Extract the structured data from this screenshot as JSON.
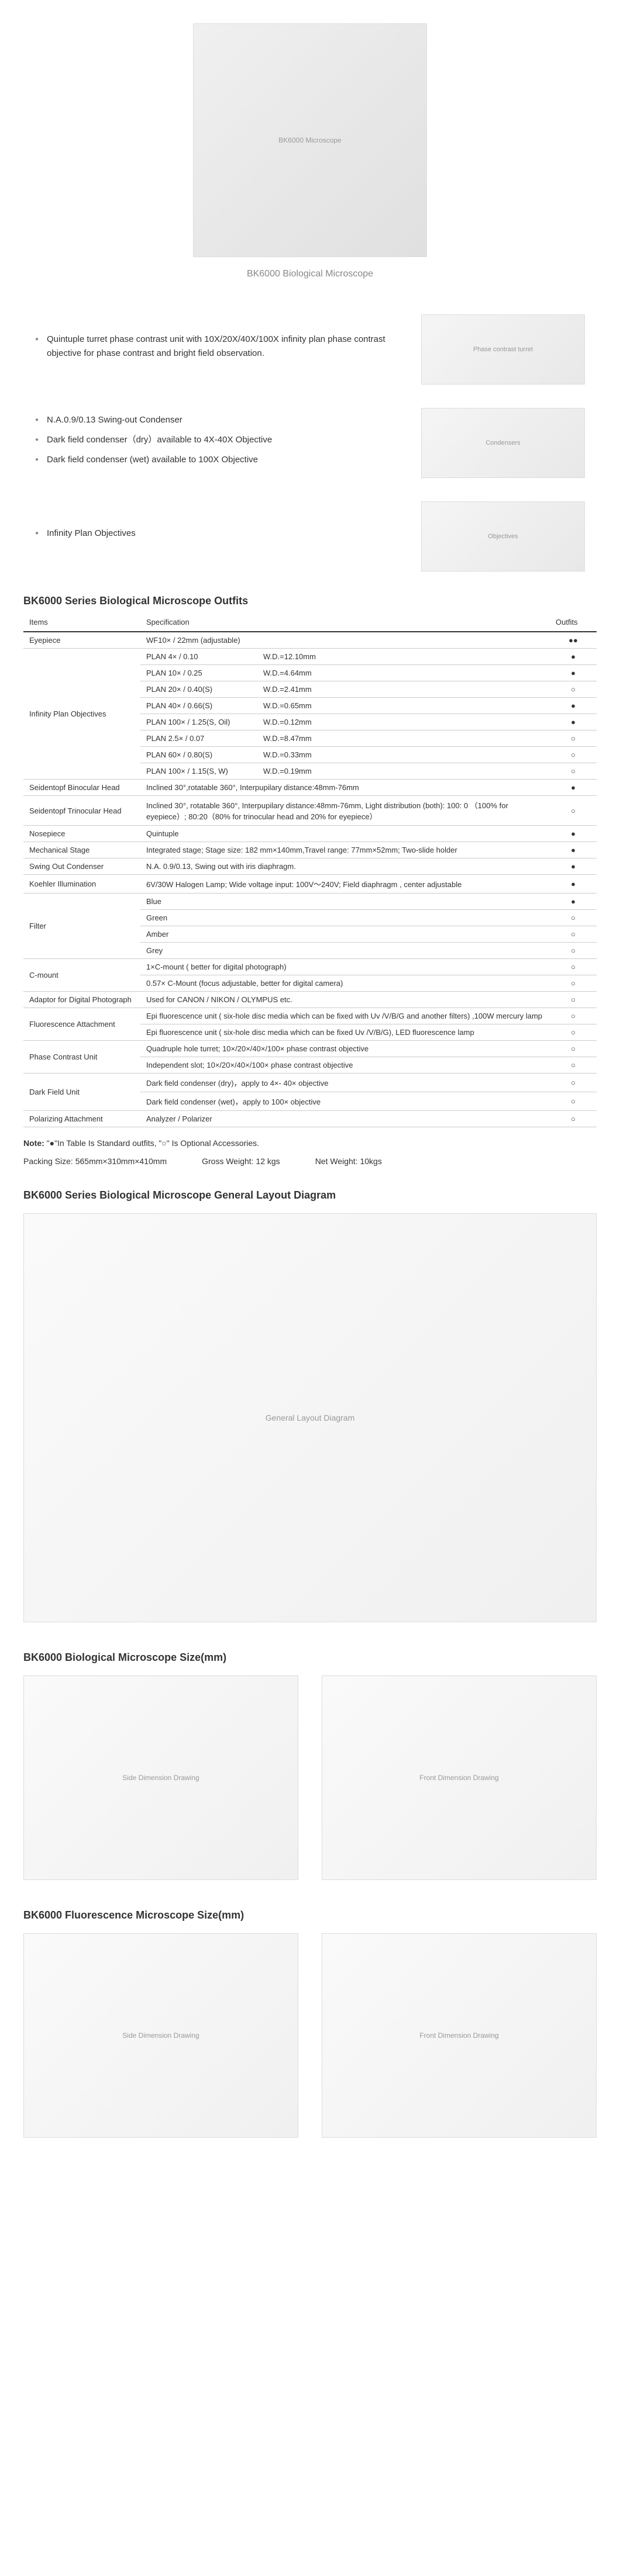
{
  "hero": {
    "caption": "BK6000 Biological Microscope",
    "imgAlt": "BK6000 Microscope"
  },
  "features": [
    {
      "items": [
        "Quintuple turret phase contrast unit with 10X/20X/40X/100X infinity plan phase contrast objective for phase contrast and bright field observation."
      ],
      "imgAlt": "Phase contrast turret"
    },
    {
      "items": [
        "N.A.0.9/0.13 Swing-out Condenser",
        "Dark field condenser（dry）available to 4X-40X Objective",
        "Dark field condenser (wet) available to 100X Objective"
      ],
      "imgAlt": "Condensers"
    },
    {
      "items": [
        "Infinity Plan Objectives"
      ],
      "imgAlt": "Objectives"
    }
  ],
  "tableTitle": "BK6000 Series Biological Microscope Outfits",
  "tableHeaders": {
    "items": "Items",
    "spec": "Specification",
    "outfits": "Outfits"
  },
  "specs": [
    {
      "item": "Eyepiece",
      "spec": "WF10× / 22mm (adjustable)",
      "out": "●●"
    },
    {
      "item": "Infinity Plan Objectives",
      "rows": [
        {
          "spec": "PLAN 4× / 0.10",
          "wd": "W.D.=12.10mm",
          "out": "●"
        },
        {
          "spec": "PLAN 10× / 0.25",
          "wd": "W.D.=4.64mm",
          "out": "●"
        },
        {
          "spec": "PLAN 20× / 0.40(S)",
          "wd": "W.D.=2.41mm",
          "out": "○"
        },
        {
          "spec": "PLAN 40× / 0.66(S)",
          "wd": "W.D.=0.65mm",
          "out": "●"
        },
        {
          "spec": "PLAN 100× / 1.25(S, Oil)",
          "wd": "W.D.=0.12mm",
          "out": "●"
        },
        {
          "spec": "PLAN 2.5× / 0.07",
          "wd": "W.D.=8.47mm",
          "out": "○"
        },
        {
          "spec": "PLAN 60× / 0.80(S)",
          "wd": "W.D.=0.33mm",
          "out": "○"
        },
        {
          "spec": "PLAN 100× / 1.15(S, W)",
          "wd": "W.D.=0.19mm",
          "out": "○"
        }
      ]
    },
    {
      "item": "Seidentopf Binocular Head",
      "spec": "Inclined 30°,rotatable 360°, Interpupilary distance:48mm-76mm",
      "out": "●"
    },
    {
      "item": "Seidentopf Trinocular Head",
      "spec": "Inclined 30°, rotatable 360°, Interpupilary distance:48mm-76mm, Light distribution (both): 100: 0 （100% for eyepiece）; 80:20（80% for trinocular head and 20% for eyepiece）",
      "out": "○"
    },
    {
      "item": "Nosepiece",
      "spec": "Quintuple",
      "out": "●"
    },
    {
      "item": "Mechanical Stage",
      "spec": "Integrated stage; Stage size: 182 mm×140mm,Travel range: 77mm×52mm; Two-slide holder",
      "out": "●"
    },
    {
      "item": "Swing Out Condenser",
      "spec": "N.A. 0.9/0.13, Swing out with iris diaphragm.",
      "out": "●"
    },
    {
      "item": "Koehler Illumination",
      "spec": "6V/30W Halogen Lamp; Wide voltage input: 100V～240V; Field diaphragm , center adjustable",
      "out": "●"
    },
    {
      "item": "Filter",
      "rows": [
        {
          "spec": "Blue",
          "out": "●"
        },
        {
          "spec": "Green",
          "out": "○"
        },
        {
          "spec": "Amber",
          "out": "○"
        },
        {
          "spec": "Grey",
          "out": "○"
        }
      ]
    },
    {
      "item": "C-mount",
      "rows": [
        {
          "spec": "1×C-mount ( better for digital photograph)",
          "out": "○"
        },
        {
          "spec": "0.57× C-Mount (focus adjustable, better for digital camera)",
          "out": "○"
        }
      ]
    },
    {
      "item": "Adaptor for Digital Photograph",
      "spec": "Used for CANON / NIKON / OLYMPUS etc.",
      "out": "○"
    },
    {
      "item": "Fluorescence Attachment",
      "rows": [
        {
          "spec": "Epi fluorescence unit ( six-hole disc media which can be fixed with Uv /V/B/G and another filters) ,100W mercury lamp",
          "out": "○"
        },
        {
          "spec": "Epi fluorescence unit ( six-hole disc media which can be fixed Uv /V/B/G), LED fluorescence lamp",
          "out": "○"
        }
      ]
    },
    {
      "item": "Phase Contrast Unit",
      "rows": [
        {
          "spec": "Quadruple hole turret; 10×/20×/40×/100× phase contrast objective",
          "out": "○"
        },
        {
          "spec": "Independent slot; 10×/20×/40×/100× phase contrast objective",
          "out": "○"
        }
      ]
    },
    {
      "item": "Dark Field Unit",
      "rows": [
        {
          "spec": "Dark field condenser (dry)，apply to 4×- 40× objective",
          "out": "○"
        },
        {
          "spec": "Dark field condenser (wet)，apply to 100× objective",
          "out": "○"
        }
      ]
    },
    {
      "item": "Polarizing Attachment",
      "spec": "Analyzer / Polarizer",
      "out": "○"
    }
  ],
  "note": {
    "line1": "Note: \"●\"In Table Is Standard outfits, \"○\" Is Optional Accessories.",
    "packing": "Packing Size: 565mm×310mm×410mm",
    "gross": "Gross Weight: 12 kgs",
    "net": "Net Weight: 10kgs"
  },
  "layoutTitle": "BK6000 Series Biological Microscope General Layout Diagram",
  "bioSizeTitle": "BK6000 Biological Microscope Size(mm)",
  "fluorSizeTitle": "BK6000 Fluorescence Microscope Size(mm)",
  "placeholders": {
    "layout": "General Layout Diagram",
    "bioSide": "Side Dimension Drawing",
    "bioFront": "Front Dimension Drawing",
    "fluorSide": "Side Dimension Drawing",
    "fluorFront": "Front Dimension Drawing"
  }
}
